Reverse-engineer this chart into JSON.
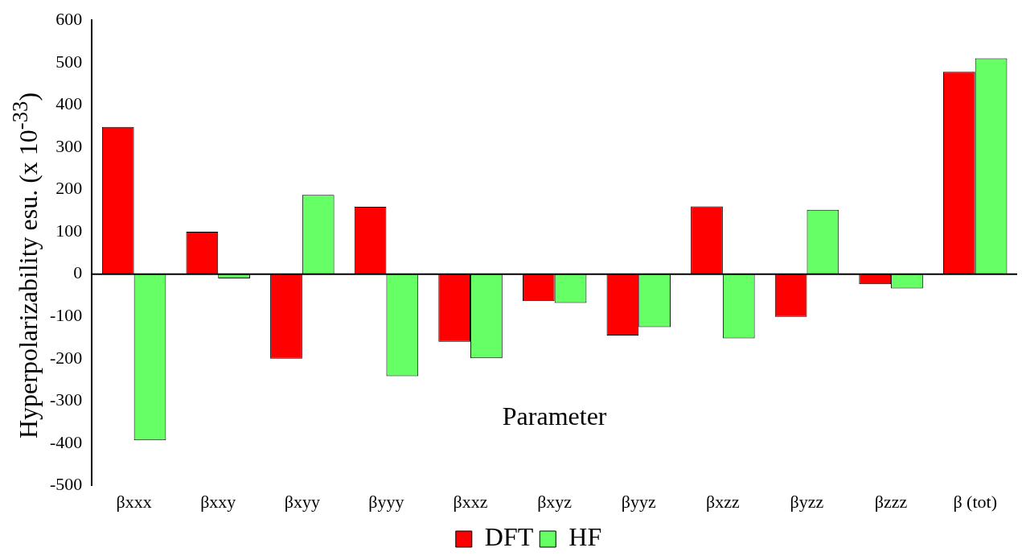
{
  "chart_data": {
    "type": "bar",
    "xlabel": "Parameter",
    "ylabel": "Hyperpolarizability esu. (x 10$^{-33}$)",
    "categories": [
      "βxxx",
      "βxxy",
      "βxyy",
      "βyyy",
      "βxxz",
      "βxyz",
      "βyyz",
      "βxzz",
      "βyzz",
      "βzzz",
      "β (tot)"
    ],
    "series": [
      {
        "name": "DFT",
        "color": "#ff0000",
        "values": [
          348,
          100,
          -200,
          159,
          -160,
          -64,
          -145,
          160,
          -101,
          -24,
          478
        ]
      },
      {
        "name": "HF",
        "color": "#66ff66",
        "values": [
          -393,
          -10,
          187,
          -241,
          -199,
          -68,
          -125,
          -152,
          152,
          -34,
          510
        ]
      }
    ],
    "ylim": [
      -500,
      600
    ],
    "yticks": [
      -500,
      -400,
      -300,
      -200,
      -100,
      0,
      100,
      200,
      300,
      400,
      500,
      600
    ],
    "ref_lines": [
      {
        "axis": "y",
        "value": 0,
        "color": "#000000"
      }
    ],
    "grid": false,
    "legend": "bottom"
  }
}
